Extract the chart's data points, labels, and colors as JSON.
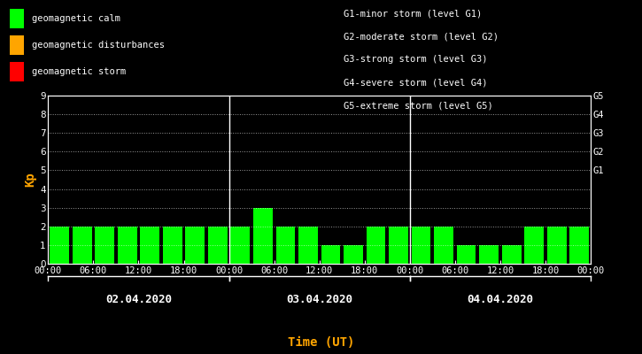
{
  "bg_color": "#000000",
  "bar_color_calm": "#00ff00",
  "bar_color_disturb": "#ffa500",
  "bar_color_storm": "#ff0000",
  "text_color": "#ffffff",
  "axis_label_color": "#ffa500",
  "grid_color": "#ffffff",
  "ylabel": "Kp",
  "xlabel": "Time (UT)",
  "ylim": [
    0,
    9
  ],
  "yticks": [
    0,
    1,
    2,
    3,
    4,
    5,
    6,
    7,
    8,
    9
  ],
  "right_labels": [
    "G5",
    "G4",
    "G3",
    "G2",
    "G1"
  ],
  "right_label_yticks": [
    9,
    8,
    7,
    6,
    5
  ],
  "legend_items": [
    {
      "label": "geomagnetic calm",
      "color": "#00ff00"
    },
    {
      "label": "geomagnetic disturbances",
      "color": "#ffa500"
    },
    {
      "label": "geomagnetic storm",
      "color": "#ff0000"
    }
  ],
  "right_legend_lines": [
    "G1-minor storm (level G1)",
    "G2-moderate storm (level G2)",
    "G3-strong storm (level G3)",
    "G4-severe storm (level G4)",
    "G5-extreme storm (level G5)"
  ],
  "days": [
    "02.04.2020",
    "03.04.2020",
    "04.04.2020"
  ],
  "kp_values": [
    2,
    2,
    2,
    2,
    2,
    2,
    2,
    2,
    2,
    3,
    2,
    2,
    1,
    1,
    2,
    2,
    2,
    2,
    1,
    1,
    1,
    2,
    2,
    2
  ],
  "bar_colors_per_bar": [
    "#00ff00",
    "#00ff00",
    "#00ff00",
    "#00ff00",
    "#00ff00",
    "#00ff00",
    "#00ff00",
    "#00ff00",
    "#00ff00",
    "#00ff00",
    "#00ff00",
    "#00ff00",
    "#00ff00",
    "#00ff00",
    "#00ff00",
    "#00ff00",
    "#00ff00",
    "#00ff00",
    "#00ff00",
    "#00ff00",
    "#00ff00",
    "#00ff00",
    "#00ff00",
    "#00ff00"
  ],
  "num_bars_per_day": 8,
  "bar_width": 0.85,
  "vline_positions": [
    8,
    16
  ],
  "time_tick_labels_day": [
    "00:00",
    "06:00",
    "12:00",
    "18:00",
    "00:00"
  ],
  "font_family": "monospace",
  "font_size_ticks": 7.5,
  "font_size_legend": 7.5,
  "font_size_ylabel": 10,
  "font_size_xlabel": 10,
  "font_size_date": 9,
  "font_size_right_labels": 7.5
}
